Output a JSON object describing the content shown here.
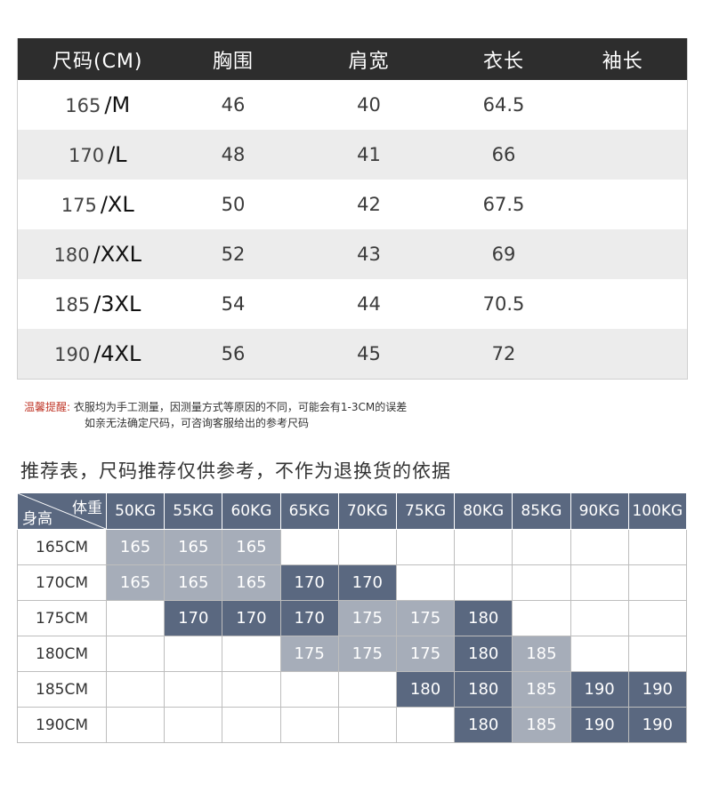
{
  "size_table": {
    "headers": [
      "尺码(CM)",
      "胸围",
      "肩宽",
      "衣长",
      "袖长"
    ],
    "rows": [
      {
        "height": "165",
        "size": "/M",
        "chest": "46",
        "shoulder": "40",
        "length": "64.5",
        "sleeve": ""
      },
      {
        "height": "170",
        "size": "/L",
        "chest": "48",
        "shoulder": "41",
        "length": "66",
        "sleeve": ""
      },
      {
        "height": "175",
        "size": "/XL",
        "chest": "50",
        "shoulder": "42",
        "length": "67.5",
        "sleeve": ""
      },
      {
        "height": "180",
        "size": "/XXL",
        "chest": "52",
        "shoulder": "43",
        "length": "69",
        "sleeve": ""
      },
      {
        "height": "185",
        "size": "/3XL",
        "chest": "54",
        "shoulder": "44",
        "length": "70.5",
        "sleeve": ""
      },
      {
        "height": "190",
        "size": "/4XL",
        "chest": "56",
        "shoulder": "45",
        "length": "72",
        "sleeve": ""
      }
    ]
  },
  "note": {
    "label": "温馨提醒:",
    "line1": "衣服均为手工测量，因测量方式等原因的不同，可能会有1-3CM的误差",
    "line2": "如亲无法确定尺码，可咨询客服给出的参考尺码"
  },
  "recommendation": {
    "title": "推荐表，尺码推荐仅供参考，不作为退换货的依据",
    "corner_top": "体重",
    "corner_bottom": "身高",
    "weights": [
      "50KG",
      "55KG",
      "60KG",
      "65KG",
      "70KG",
      "75KG",
      "80KG",
      "85KG",
      "90KG",
      "100KG"
    ],
    "rows": [
      {
        "height": "165CM",
        "cells": [
          {
            "v": "165",
            "tone": "light"
          },
          {
            "v": "165",
            "tone": "light"
          },
          {
            "v": "165",
            "tone": "light"
          },
          {
            "v": "",
            "tone": "empty"
          },
          {
            "v": "",
            "tone": "empty"
          },
          {
            "v": "",
            "tone": "empty"
          },
          {
            "v": "",
            "tone": "empty"
          },
          {
            "v": "",
            "tone": "empty"
          },
          {
            "v": "",
            "tone": "empty"
          },
          {
            "v": "",
            "tone": "empty"
          }
        ]
      },
      {
        "height": "170CM",
        "cells": [
          {
            "v": "165",
            "tone": "light"
          },
          {
            "v": "165",
            "tone": "light"
          },
          {
            "v": "165",
            "tone": "light"
          },
          {
            "v": "170",
            "tone": "dark"
          },
          {
            "v": "170",
            "tone": "dark"
          },
          {
            "v": "",
            "tone": "empty"
          },
          {
            "v": "",
            "tone": "empty"
          },
          {
            "v": "",
            "tone": "empty"
          },
          {
            "v": "",
            "tone": "empty"
          },
          {
            "v": "",
            "tone": "empty"
          }
        ]
      },
      {
        "height": "175CM",
        "cells": [
          {
            "v": "",
            "tone": "empty"
          },
          {
            "v": "170",
            "tone": "dark"
          },
          {
            "v": "170",
            "tone": "dark"
          },
          {
            "v": "170",
            "tone": "dark"
          },
          {
            "v": "175",
            "tone": "light"
          },
          {
            "v": "175",
            "tone": "light"
          },
          {
            "v": "180",
            "tone": "dark"
          },
          {
            "v": "",
            "tone": "empty"
          },
          {
            "v": "",
            "tone": "empty"
          },
          {
            "v": "",
            "tone": "empty"
          }
        ]
      },
      {
        "height": "180CM",
        "cells": [
          {
            "v": "",
            "tone": "empty"
          },
          {
            "v": "",
            "tone": "empty"
          },
          {
            "v": "",
            "tone": "empty"
          },
          {
            "v": "175",
            "tone": "light"
          },
          {
            "v": "175",
            "tone": "light"
          },
          {
            "v": "175",
            "tone": "light"
          },
          {
            "v": "180",
            "tone": "dark"
          },
          {
            "v": "185",
            "tone": "light"
          },
          {
            "v": "",
            "tone": "empty"
          },
          {
            "v": "",
            "tone": "empty"
          }
        ]
      },
      {
        "height": "185CM",
        "cells": [
          {
            "v": "",
            "tone": "empty"
          },
          {
            "v": "",
            "tone": "empty"
          },
          {
            "v": "",
            "tone": "empty"
          },
          {
            "v": "",
            "tone": "empty"
          },
          {
            "v": "",
            "tone": "empty"
          },
          {
            "v": "180",
            "tone": "dark"
          },
          {
            "v": "180",
            "tone": "dark"
          },
          {
            "v": "185",
            "tone": "light"
          },
          {
            "v": "190",
            "tone": "dark"
          },
          {
            "v": "190",
            "tone": "dark"
          }
        ]
      },
      {
        "height": "190CM",
        "cells": [
          {
            "v": "",
            "tone": "empty"
          },
          {
            "v": "",
            "tone": "empty"
          },
          {
            "v": "",
            "tone": "empty"
          },
          {
            "v": "",
            "tone": "empty"
          },
          {
            "v": "",
            "tone": "empty"
          },
          {
            "v": "",
            "tone": "empty"
          },
          {
            "v": "180",
            "tone": "dark"
          },
          {
            "v": "185",
            "tone": "light"
          },
          {
            "v": "190",
            "tone": "dark"
          },
          {
            "v": "190",
            "tone": "dark"
          }
        ]
      }
    ]
  },
  "colors": {
    "header_dark": "#2d2d2d",
    "stripe": "#ececec",
    "rec_dark": "#5a6880",
    "rec_light": "#a6adb9",
    "note_label": "#c0392b"
  }
}
